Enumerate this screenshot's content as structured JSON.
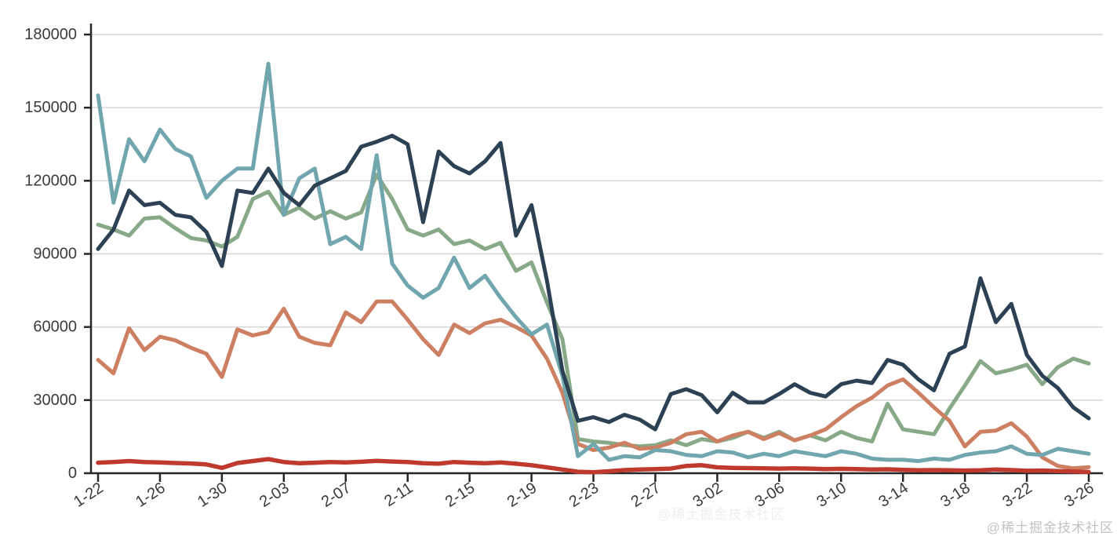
{
  "watermark": {
    "text": "@稀土掘金技术社区"
  },
  "watermark_faint": {
    "text": "@稀土掘金技术社区"
  },
  "chart_data": {
    "type": "line",
    "title": "",
    "xlabel": "",
    "ylabel": "",
    "grid": "horizontal",
    "legend": "none",
    "ylim": [
      0,
      180000
    ],
    "y_ticks": [
      0,
      30000,
      60000,
      90000,
      120000,
      150000,
      180000
    ],
    "x_tick_every": 4,
    "x_tick_labels": [
      "1-22",
      "1-26",
      "1-30",
      "2-03",
      "2-07",
      "2-11",
      "2-15",
      "2-19",
      "2-23",
      "2-27",
      "3-02",
      "3-06",
      "3-10",
      "3-14",
      "3-18",
      "3-22",
      "3-26"
    ],
    "x": [
      "1-22",
      "1-23",
      "1-24",
      "1-25",
      "1-26",
      "1-27",
      "1-28",
      "1-29",
      "1-30",
      "1-31",
      "2-01",
      "2-02",
      "2-03",
      "2-04",
      "2-05",
      "2-06",
      "2-07",
      "2-08",
      "2-09",
      "2-10",
      "2-11",
      "2-12",
      "2-13",
      "2-14",
      "2-15",
      "2-16",
      "2-17",
      "2-18",
      "2-19",
      "2-20",
      "2-21",
      "2-22",
      "2-23",
      "2-24",
      "2-25",
      "2-26",
      "2-27",
      "2-28",
      "2-29",
      "3-01",
      "3-02",
      "3-03",
      "3-04",
      "3-05",
      "3-06",
      "3-07",
      "3-08",
      "3-09",
      "3-10",
      "3-11",
      "3-12",
      "3-13",
      "3-14",
      "3-15",
      "3-16",
      "3-17",
      "3-18",
      "3-19",
      "3-20",
      "3-21",
      "3-22",
      "3-23",
      "3-24",
      "3-25",
      "3-26"
    ],
    "series": [
      {
        "name": "green",
        "color": "#88a988",
        "values": [
          102000,
          100000,
          97500,
          104500,
          105000,
          100500,
          96500,
          95500,
          93000,
          97000,
          112500,
          115500,
          106000,
          109000,
          104500,
          107500,
          104500,
          107000,
          122500,
          112500,
          100000,
          97500,
          100000,
          94000,
          95500,
          92000,
          94500,
          83000,
          86500,
          70000,
          55000,
          14000,
          13000,
          12500,
          11500,
          11000,
          11500,
          13500,
          11500,
          14000,
          13000,
          14500,
          17000,
          14500,
          17000,
          13500,
          15500,
          13500,
          17000,
          14500,
          13000,
          28500,
          18000,
          17000,
          16000,
          26500,
          36000,
          46000,
          41000,
          42500,
          44500,
          36500,
          43500,
          47000,
          45000
        ]
      },
      {
        "name": "orange",
        "color": "#cd7f62",
        "values": [
          46500,
          41000,
          59500,
          50500,
          56000,
          54500,
          51500,
          49000,
          39500,
          59000,
          56500,
          58000,
          67500,
          56000,
          53500,
          52500,
          66000,
          62000,
          70500,
          70500,
          63000,
          55000,
          48500,
          61000,
          57500,
          61500,
          63000,
          60000,
          56500,
          47000,
          33000,
          12000,
          9500,
          10500,
          12500,
          10000,
          10500,
          12500,
          16000,
          17000,
          13000,
          15500,
          17000,
          14000,
          16500,
          13500,
          15500,
          18000,
          23000,
          27500,
          31000,
          36000,
          38500,
          33000,
          27000,
          21500,
          11000,
          17000,
          17500,
          20500,
          15000,
          6500,
          3000,
          2000,
          2500
        ]
      },
      {
        "name": "teal",
        "color": "#71a6ae",
        "values": [
          155000,
          111000,
          137000,
          128000,
          141000,
          133000,
          130000,
          113000,
          120000,
          125000,
          125000,
          168000,
          106000,
          121000,
          125000,
          94000,
          97000,
          92000,
          130500,
          86000,
          77000,
          72000,
          76000,
          88500,
          76000,
          81000,
          72000,
          64000,
          57000,
          61000,
          40000,
          7000,
          12000,
          5500,
          7000,
          6500,
          9500,
          9000,
          7500,
          7000,
          9000,
          8500,
          6500,
          8000,
          7000,
          9000,
          8000,
          7000,
          9000,
          8000,
          6000,
          5500,
          5500,
          5000,
          6000,
          5500,
          7500,
          8500,
          9000,
          11000,
          8000,
          7500,
          10000,
          9000,
          8000
        ]
      },
      {
        "name": "navy",
        "color": "#2d4155",
        "values": [
          92000,
          100000,
          116000,
          110000,
          111000,
          106000,
          105000,
          99000,
          85000,
          116000,
          115000,
          125000,
          115000,
          110000,
          118000,
          121000,
          124000,
          134000,
          136000,
          138500,
          135000,
          103000,
          132000,
          126000,
          123000,
          128000,
          135500,
          97500,
          110000,
          79000,
          42000,
          21500,
          23000,
          21000,
          24000,
          22000,
          18000,
          32500,
          34500,
          32000,
          25000,
          33000,
          29000,
          29000,
          32500,
          36500,
          33000,
          31500,
          36500,
          38000,
          37000,
          46500,
          44500,
          38500,
          34000,
          49000,
          52000,
          80000,
          62000,
          69500,
          48500,
          40000,
          35000,
          27000,
          22500
        ]
      },
      {
        "name": "red",
        "color": "#bf392d",
        "values": [
          4300,
          4600,
          5000,
          4600,
          4400,
          4200,
          4000,
          3600,
          2200,
          4200,
          5000,
          5800,
          4600,
          4100,
          4300,
          4600,
          4400,
          4700,
          5100,
          4800,
          4600,
          4100,
          3900,
          4600,
          4300,
          4100,
          4400,
          3900,
          3300,
          2400,
          1500,
          600,
          400,
          800,
          1300,
          1500,
          1700,
          1900,
          3000,
          3300,
          2400,
          2200,
          2100,
          2000,
          1900,
          2000,
          1900,
          1700,
          1800,
          1700,
          1500,
          1600,
          1400,
          1200,
          1300,
          1200,
          1100,
          1200,
          1500,
          1300,
          1000,
          1100,
          900,
          700,
          500
        ]
      }
    ],
    "style": {
      "grid_color": "#d6d6d6",
      "axis_color": "#262626",
      "tick_label_color": "#3b3b3b",
      "background": "#ffffff"
    }
  }
}
